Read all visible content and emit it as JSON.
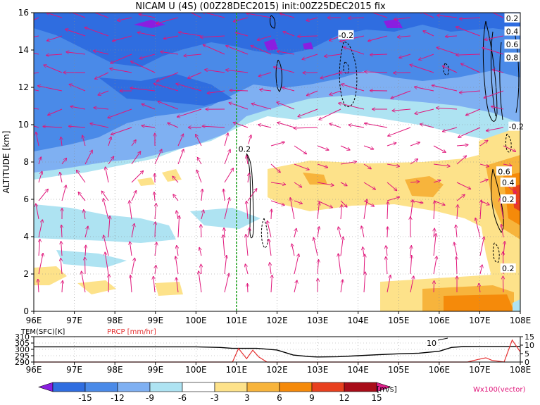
{
  "chart_data": [
    {
      "type": "heatmap",
      "title": "NICAM  U  (4S)  (00Z28DEC2015)  init:00Z25DEC2015  fix",
      "ylabel": "ALTITUDE  [km]",
      "xlabel": "",
      "x_ticks": [
        "96E",
        "97E",
        "98E",
        "99E",
        "100E",
        "101E",
        "102E",
        "103E",
        "104E",
        "105E",
        "106E",
        "107E",
        "108E"
      ],
      "y_ticks": [
        "0",
        "2",
        "4",
        "6",
        "8",
        "10",
        "12",
        "14",
        "16"
      ],
      "xlim": [
        96,
        108
      ],
      "ylim": [
        0,
        16
      ],
      "grid": true,
      "marker_line_lon": 101,
      "contour_labels": [
        {
          "text": "-0.2",
          "lon": 103.7,
          "alt": 14.8
        },
        {
          "text": "0.2",
          "lon": 101.2,
          "alt": 8.7
        },
        {
          "text": "0.2",
          "lon": 107.8,
          "alt": 15.7
        },
        {
          "text": "0.4",
          "lon": 107.8,
          "alt": 15.0
        },
        {
          "text": "0.6",
          "lon": 107.8,
          "alt": 14.3
        },
        {
          "text": "0.8",
          "lon": 107.8,
          "alt": 13.6
        },
        {
          "text": "-0.2",
          "lon": 107.9,
          "alt": 9.9
        },
        {
          "text": "0.6",
          "lon": 107.6,
          "alt": 7.5
        },
        {
          "text": "0.4",
          "lon": 107.7,
          "alt": 6.9
        },
        {
          "text": "0.2",
          "lon": 107.7,
          "alt": 6.0
        },
        {
          "text": "0.2",
          "lon": 107.7,
          "alt": 2.3
        }
      ]
    },
    {
      "type": "line",
      "labels": [
        "TEM(SFC)[K]",
        "PRCP [mm/hr]"
      ],
      "x_ticks": [
        "96E",
        "97E",
        "98E",
        "99E",
        "100E",
        "101E",
        "102E",
        "103E",
        "104E",
        "105E",
        "106E",
        "107E",
        "108E"
      ],
      "left_ticks": [
        "310",
        "305",
        "300",
        "295",
        "290"
      ],
      "right_ticks": [
        "15",
        "10",
        "5",
        "0"
      ],
      "left_lim": [
        290,
        310
      ],
      "right_lim": [
        0,
        15
      ],
      "annotation": "10",
      "series": [
        {
          "color": "#000000",
          "x": [
            96,
            97,
            98,
            99,
            100,
            100.6,
            100.9,
            101.5,
            102.0,
            102.4,
            102.8,
            103.0,
            103.5,
            104.0,
            104.5,
            105.0,
            105.5,
            106.0,
            106.3,
            106.6,
            107.0,
            107.5,
            108
          ],
          "y": [
            302,
            302,
            302,
            302,
            302,
            301.5,
            300.8,
            300.8,
            299.5,
            295.5,
            294.3,
            294.0,
            294.2,
            295.0,
            295.8,
            296.5,
            297.0,
            298.5,
            301.5,
            302.2,
            302.3,
            302.3,
            302.3
          ]
        },
        {
          "color": "#e53030",
          "x": [
            96,
            100.9,
            101.05,
            101.25,
            101.4,
            101.55,
            101.75,
            102.0,
            106.7,
            106.95,
            107.15,
            107.3,
            107.6,
            107.8,
            108
          ],
          "y": [
            0,
            0,
            8,
            2,
            7,
            3,
            0,
            0,
            0,
            1.5,
            2.5,
            1.0,
            0,
            13,
            6
          ]
        }
      ]
    },
    {
      "type": "colorbar",
      "levels": [
        "-15",
        "-12",
        "-9",
        "-6",
        "-3",
        "3",
        "6",
        "9",
        "12",
        "15"
      ],
      "colors": [
        "#8a1ee0",
        "#2f6de0",
        "#4a8ae8",
        "#7fb0f2",
        "#aee3f2",
        "#ffffff",
        "#fde28a",
        "#f7b43c",
        "#f58a0a",
        "#e8401e",
        "#a80c18",
        "#dd1f8a"
      ],
      "unit": "[m/s]",
      "vector_label": "Wx100(vector)"
    }
  ]
}
